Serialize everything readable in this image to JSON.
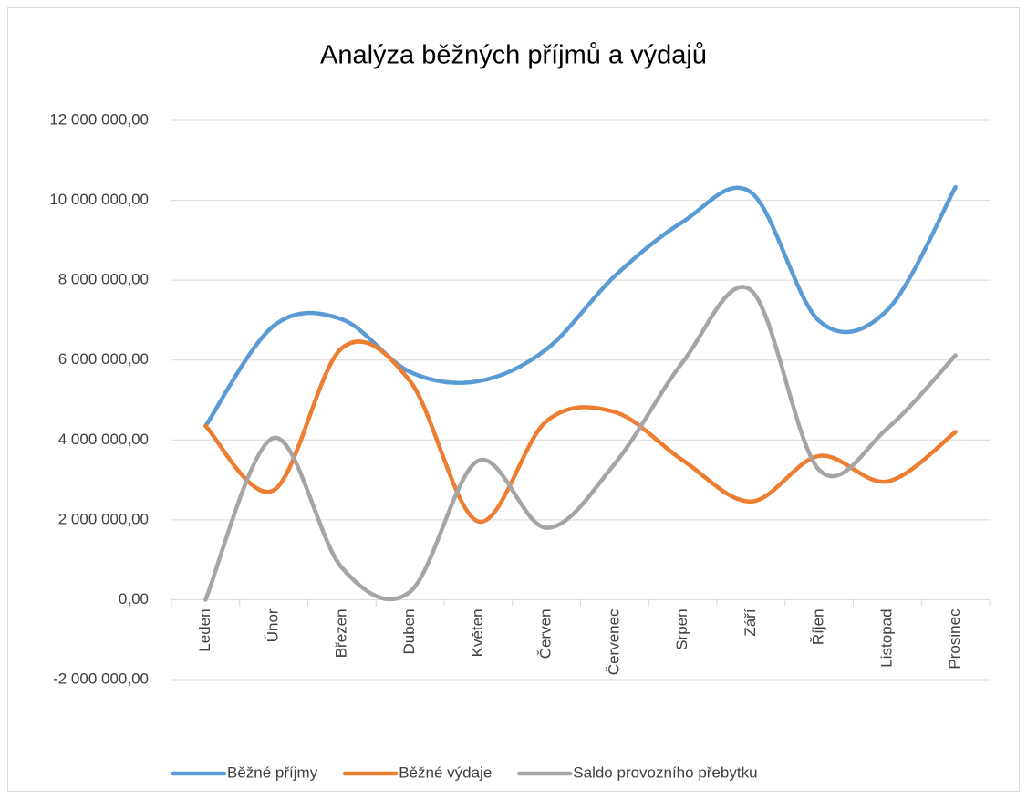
{
  "chart_data": {
    "type": "line",
    "title": "Analýza běžných příjmů a výdajů",
    "categories": [
      "Leden",
      "Únor",
      "Březen",
      "Duben",
      "Květen",
      "Červen",
      "Červenec",
      "Srpen",
      "Září",
      "Říjen",
      "Listopad",
      "Prosinec"
    ],
    "series": [
      {
        "name": "Běžné příjmy",
        "color": "#5b9bd5",
        "values": [
          4350000,
          6860000,
          7020000,
          5700000,
          5470000,
          6270000,
          8100000,
          9460000,
          10200000,
          6980000,
          7250000,
          10330000
        ]
      },
      {
        "name": "Běžné výdaje",
        "color": "#ed7d31",
        "values": [
          4350000,
          2740000,
          6300000,
          5470000,
          1960000,
          4470000,
          4700000,
          3490000,
          2460000,
          3600000,
          2960000,
          4200000
        ]
      },
      {
        "name": "Saldo provozního přebytku",
        "color": "#a5a5a5",
        "values": [
          0,
          4050000,
          800000,
          200000,
          3480000,
          1800000,
          3400000,
          5950000,
          7750000,
          3250000,
          4290000,
          6120000
        ]
      }
    ],
    "ylim": [
      -2000000,
      12000000
    ],
    "yticks": [
      {
        "value": -2000000,
        "label": "-2 000 000,00"
      },
      {
        "value": 0,
        "label": "0,00"
      },
      {
        "value": 2000000,
        "label": "2 000 000,00"
      },
      {
        "value": 4000000,
        "label": "4 000 000,00"
      },
      {
        "value": 6000000,
        "label": "6 000 000,00"
      },
      {
        "value": 8000000,
        "label": "8 000 000,00"
      },
      {
        "value": 10000000,
        "label": "10 000 000,00"
      },
      {
        "value": 12000000,
        "label": "12 000 000,00"
      }
    ],
    "grid": true,
    "smooth": true,
    "legend": "bottom"
  }
}
